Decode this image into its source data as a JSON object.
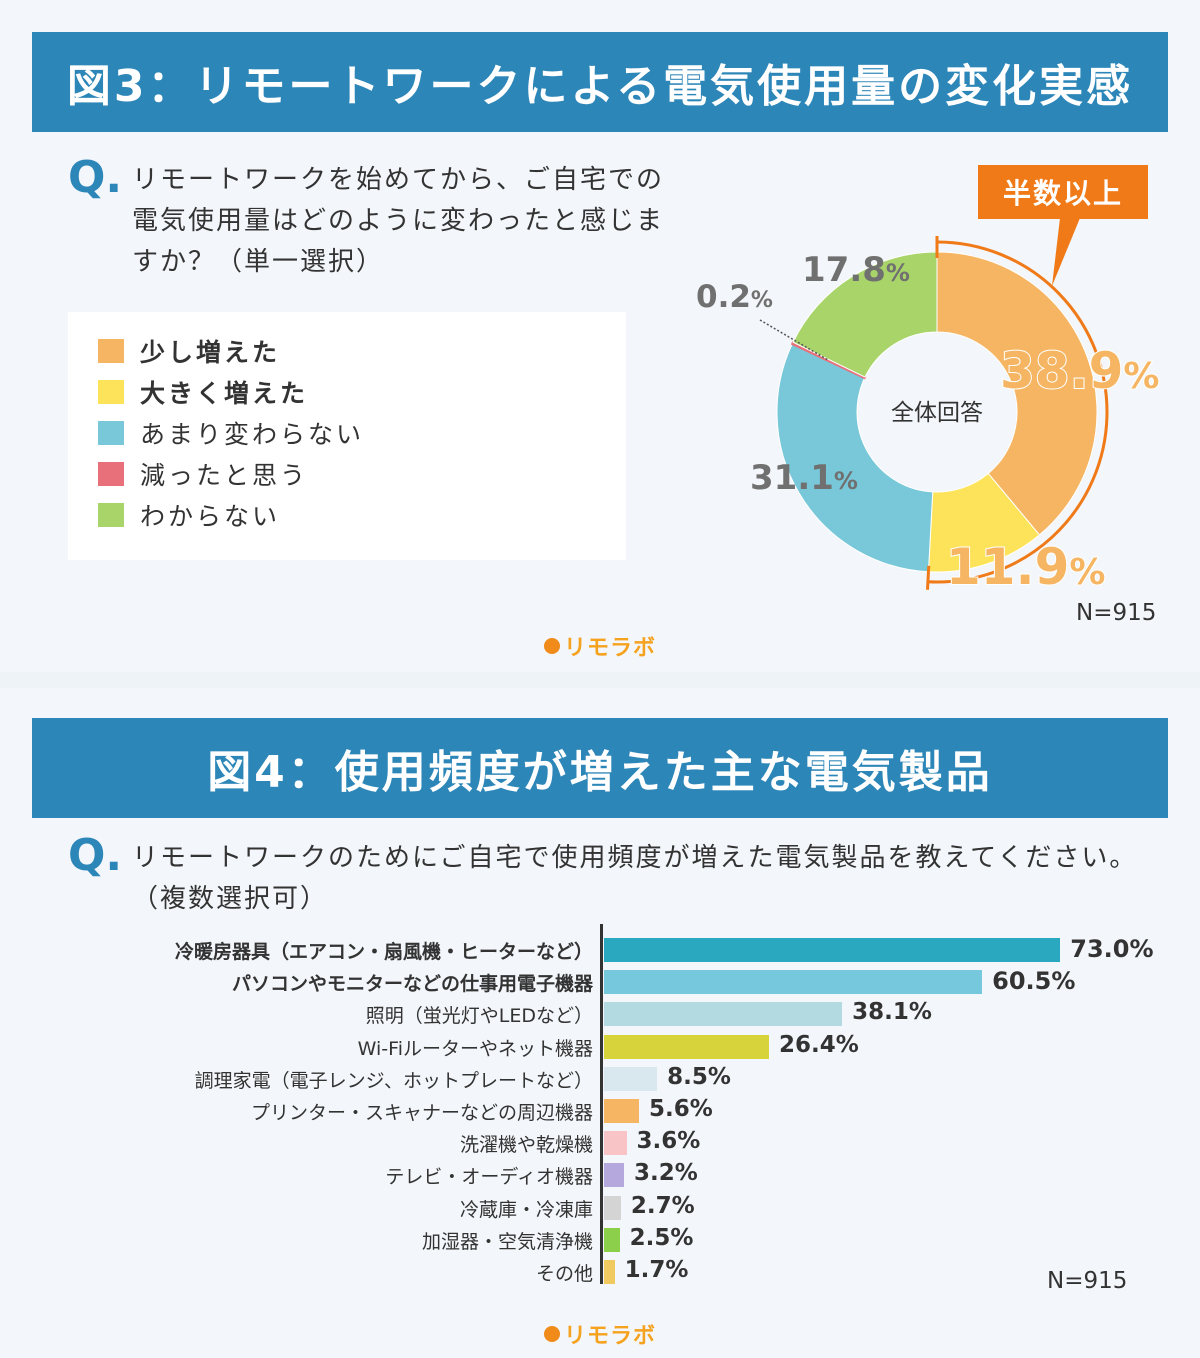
{
  "figure3": {
    "title": "図3：リモートワークによる電気使用量の変化実感",
    "q_mark": "Q.",
    "question_lines": [
      "リモートワークを始めてから、ご自宅での",
      "電気使用量はどのように変わったと感じま",
      "すか？（単一選択）"
    ],
    "badge": "半数以上",
    "n_label": "N=915",
    "logo": "リモラボ"
  },
  "figure4": {
    "title": "図4：使用頻度が増えた主な電気製品",
    "q_mark": "Q.",
    "question_lines": [
      "リモートワークのためにご自宅で使用頻度が増えた電気製品を教えてください。",
      "（複数選択可）"
    ],
    "n_label": "N=915",
    "logo": "リモラボ"
  },
  "chart_data": [
    {
      "type": "pie",
      "variant": "donut",
      "center_label": "全体回答",
      "title": "図3：リモートワークによる電気使用量の変化実感",
      "slices": [
        {
          "label": "少し増えた",
          "value": 38.9,
          "display": "38.9%",
          "color": "#f5b562",
          "bold": true
        },
        {
          "label": "大きく増えた",
          "value": 11.9,
          "display": "11.9%",
          "color": "#fde35a",
          "bold": true
        },
        {
          "label": "あまり変わらない",
          "value": 31.1,
          "display": "31.1%",
          "color": "#78c8da",
          "bold": false
        },
        {
          "label": "減ったと思う",
          "value": 0.2,
          "display": "0.2%",
          "color": "#e8707a",
          "bold": false
        },
        {
          "label": "わからない",
          "value": 17.8,
          "display": "17.8%",
          "color": "#a8d46a",
          "bold": false
        }
      ],
      "highlight": {
        "label": "半数以上",
        "color": "#f07a18",
        "covers": [
          "少し増えた",
          "大きく増えた"
        ]
      },
      "n": "N=915"
    },
    {
      "type": "bar",
      "orientation": "horizontal",
      "title": "図4：使用頻度が増えた主な電気製品",
      "categories": [
        "冷暖房器具（エアコン・扇風機・ヒーターなど）",
        "パソコンやモニターなどの仕事用電子機器",
        "照明（蛍光灯やLEDなど）",
        "Wi-Fiルーターやネット機器",
        "調理家電（電子レンジ、ホットプレートなど）",
        "プリンター・スキャナーなどの周辺機器",
        "洗濯機や乾燥機",
        "テレビ・オーディオ機器",
        "冷蔵庫・冷凍庫",
        "加湿器・空気清浄機",
        "その他"
      ],
      "values": [
        73.0,
        60.5,
        38.1,
        26.4,
        8.5,
        5.6,
        3.6,
        3.2,
        2.7,
        2.5,
        1.7
      ],
      "value_labels": [
        "73.0%",
        "60.5%",
        "38.1%",
        "26.4%",
        "8.5%",
        "5.6%",
        "3.6%",
        "3.2%",
        "2.7%",
        "2.5%",
        "1.7%"
      ],
      "colors": [
        "#2aa8c0",
        "#76c8dc",
        "#b2dae0",
        "#d6d43a",
        "#d8e8ee",
        "#f5b562",
        "#f8c4c6",
        "#b4a8dc",
        "#d4d4d4",
        "#8ccf4a",
        "#f0ca60"
      ],
      "bold_categories": [
        0,
        1
      ],
      "xlim": [
        0,
        100
      ],
      "n": "N=915"
    }
  ]
}
